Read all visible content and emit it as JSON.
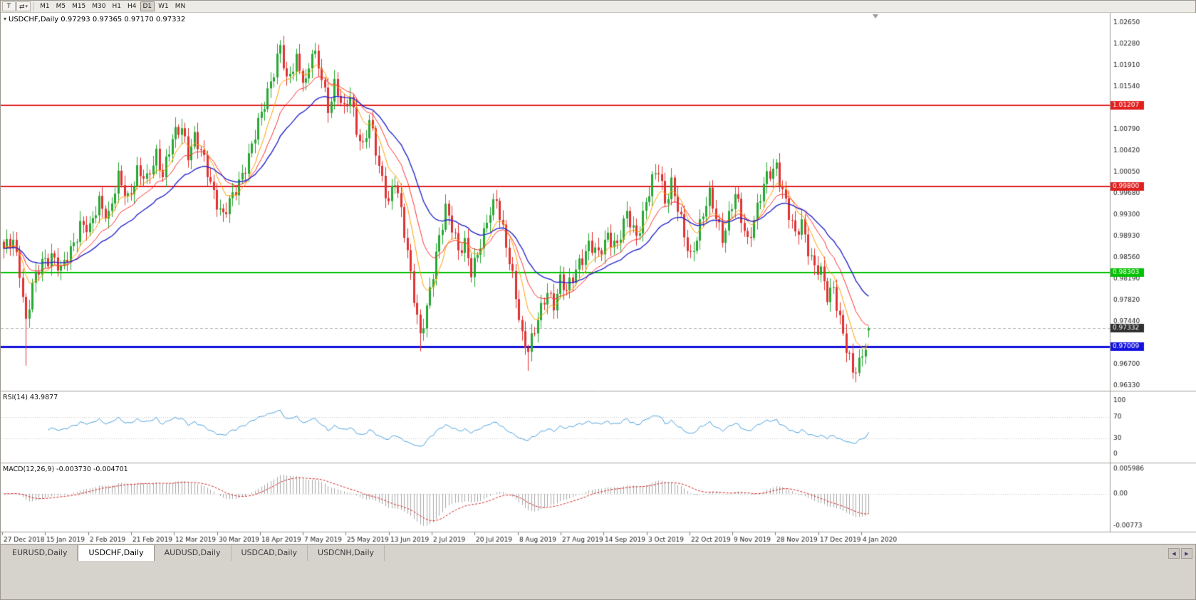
{
  "toolbar": {
    "tool_button": "T",
    "timeframes": [
      "M1",
      "M5",
      "M15",
      "M30",
      "H1",
      "H4",
      "D1",
      "W1",
      "MN"
    ],
    "active_timeframe": "D1"
  },
  "icons": {
    "expander": "▾",
    "caret": "▾",
    "arrows": "⇄",
    "scroll_left": "◀",
    "scroll_right": "▶"
  },
  "chart_header": {
    "title": "USDCHF,Daily 0.97293 0.97365 0.97170 0.97332"
  },
  "indicators": {
    "rsi": {
      "label": "RSI(14) 43.9877"
    },
    "macd": {
      "label": "MACD(12,26,9) -0.003730 -0.004701"
    }
  },
  "tabbar": {
    "tabs": [
      "EURUSD,Daily",
      "USDCHF,Daily",
      "AUDUSD,Daily",
      "USDCAD,Daily",
      "USDCNH,Daily"
    ],
    "active_tab": "USDCHF,Daily"
  },
  "chart_data": {
    "type": "candlestick",
    "symbol": "USDCHF",
    "timeframe": "Daily",
    "ohlc": {
      "open": 0.97293,
      "high": 0.97365,
      "low": 0.9717,
      "close": 0.97332
    },
    "current_price": 0.97332,
    "current_price_label": "0.97332",
    "price_axis": {
      "max": 1.0265,
      "min": 0.9633,
      "tick_step": 0.0037
    },
    "y_ticks": [
      "1.02650",
      "1.02280",
      "1.01910",
      "1.01540",
      "1.00790",
      "1.00420",
      "1.00050",
      "0.99680",
      "0.99300",
      "0.98930",
      "0.98560",
      "0.98190",
      "0.97820",
      "0.97440",
      "0.96700",
      "0.96330"
    ],
    "x_ticks": [
      "27 Dec 2018",
      "15 Jan 2019",
      "2 Feb 2019",
      "21 Feb 2019",
      "12 Mar 2019",
      "30 Mar 2019",
      "18 Apr 2019",
      "7 May 2019",
      "25 May 2019",
      "13 Jun 2019",
      "2 Jul 2019",
      "20 Jul 2019",
      "8 Aug 2019",
      "27 Aug 2019",
      "14 Sep 2019",
      "3 Oct 2019",
      "22 Oct 2019",
      "9 Nov 2019",
      "28 Nov 2019",
      "17 Dec 2019",
      "4 Jan 2020"
    ],
    "price_lines": [
      {
        "price": 1.01207,
        "label": "1.01207",
        "color": "#e02020",
        "width": 2
      },
      {
        "price": 0.998,
        "label": "0.99800",
        "color": "#e02020",
        "width": 2
      },
      {
        "price": 0.98303,
        "label": "0.98303",
        "color": "#00c000",
        "width": 2
      },
      {
        "price": 0.97009,
        "label": "0.97009",
        "color": "#1414dd",
        "width": 3
      }
    ],
    "colors": {
      "bull": "#26a832",
      "bear": "#e03232",
      "current_badge": "#2f2f2f",
      "current_line": "#b4b4b4"
    },
    "moving_averages": [
      {
        "period": 8,
        "color": "#ffa000",
        "width": 1
      },
      {
        "period": 16,
        "color": "#ff3030",
        "width": 1
      },
      {
        "period": 30,
        "color": "#2828cc",
        "width": 1.4
      }
    ],
    "candle_count": 273,
    "price_anchors": [
      [
        0,
        0.9865
      ],
      [
        3,
        0.9888
      ],
      [
        5,
        0.9838
      ],
      [
        7,
        0.9742
      ],
      [
        9,
        0.9802
      ],
      [
        12,
        0.9852
      ],
      [
        15,
        0.9862
      ],
      [
        18,
        0.9828
      ],
      [
        21,
        0.9872
      ],
      [
        24,
        0.9915
      ],
      [
        27,
        0.99
      ],
      [
        30,
        0.9958
      ],
      [
        33,
        0.993
      ],
      [
        36,
        0.999
      ],
      [
        39,
        0.9962
      ],
      [
        42,
        1.0008
      ],
      [
        45,
        0.9985
      ],
      [
        48,
        1.004
      ],
      [
        50,
        1.0005
      ],
      [
        53,
        1.0058
      ],
      [
        56,
        1.0084
      ],
      [
        58,
        1.0042
      ],
      [
        60,
        1.0066
      ],
      [
        63,
        1.002
      ],
      [
        66,
        0.9972
      ],
      [
        69,
        0.9928
      ],
      [
        72,
        0.9958
      ],
      [
        75,
        1.0005
      ],
      [
        78,
        1.005
      ],
      [
        81,
        1.0102
      ],
      [
        84,
        1.0168
      ],
      [
        87,
        1.0224
      ],
      [
        89,
        1.0155
      ],
      [
        92,
        1.0205
      ],
      [
        95,
        1.016
      ],
      [
        97,
        1.0212
      ],
      [
        100,
        1.0172
      ],
      [
        102,
        1.012
      ],
      [
        104,
        1.0158
      ],
      [
        107,
        1.0106
      ],
      [
        109,
        1.014
      ],
      [
        111,
        1.0085
      ],
      [
        113,
        1.0048
      ],
      [
        115,
        1.009
      ],
      [
        117,
        1.004
      ],
      [
        119,
        0.9995
      ],
      [
        121,
        0.9958
      ],
      [
        123,
        0.9988
      ],
      [
        125,
        0.993
      ],
      [
        127,
        0.9868
      ],
      [
        129,
        0.9795
      ],
      [
        131,
        0.9718
      ],
      [
        133,
        0.976
      ],
      [
        135,
        0.9828
      ],
      [
        137,
        0.9898
      ],
      [
        139,
        0.9946
      ],
      [
        141,
        0.9905
      ],
      [
        143,
        0.9862
      ],
      [
        145,
        0.9885
      ],
      [
        147,
        0.9838
      ],
      [
        149,
        0.986
      ],
      [
        151,
        0.989
      ],
      [
        153,
        0.9938
      ],
      [
        155,
        0.9965
      ],
      [
        157,
        0.9905
      ],
      [
        159,
        0.9845
      ],
      [
        161,
        0.9785
      ],
      [
        163,
        0.9722
      ],
      [
        165,
        0.9702
      ],
      [
        167,
        0.9728
      ],
      [
        169,
        0.976
      ],
      [
        171,
        0.9798
      ],
      [
        173,
        0.978
      ],
      [
        175,
        0.9818
      ],
      [
        177,
        0.9792
      ],
      [
        179,
        0.982
      ],
      [
        181,
        0.9852
      ],
      [
        184,
        0.9878
      ],
      [
        187,
        0.9856
      ],
      [
        190,
        0.99
      ],
      [
        193,
        0.9876
      ],
      [
        196,
        0.9928
      ],
      [
        199,
        0.9898
      ],
      [
        202,
        0.995
      ],
      [
        204,
        0.9985
      ],
      [
        206,
        1.001
      ],
      [
        208,
        0.9958
      ],
      [
        210,
        0.9988
      ],
      [
        212,
        0.9938
      ],
      [
        214,
        0.989
      ],
      [
        216,
        0.986
      ],
      [
        218,
        0.9898
      ],
      [
        220,
        0.993
      ],
      [
        222,
        0.996
      ],
      [
        224,
        0.9928
      ],
      [
        226,
        0.9896
      ],
      [
        228,
        0.9928
      ],
      [
        230,
        0.9962
      ],
      [
        232,
        0.9922
      ],
      [
        234,
        0.9888
      ],
      [
        236,
        0.9926
      ],
      [
        238,
        0.996
      ],
      [
        240,
        0.9992
      ],
      [
        243,
        1.002
      ],
      [
        245,
        0.9976
      ],
      [
        247,
        0.9928
      ],
      [
        249,
        0.989
      ],
      [
        251,
        0.992
      ],
      [
        253,
        0.9876
      ],
      [
        255,
        0.9838
      ],
      [
        257,
        0.9826
      ],
      [
        259,
        0.9788
      ],
      [
        261,
        0.981
      ],
      [
        263,
        0.975
      ],
      [
        265,
        0.9694
      ],
      [
        267,
        0.9652
      ],
      [
        269,
        0.9676
      ],
      [
        271,
        0.971
      ],
      [
        272,
        0.97332
      ]
    ],
    "spike_lows": [
      {
        "i": 7,
        "low": 0.9668
      },
      {
        "i": 131,
        "low": 0.9693
      },
      {
        "i": 165,
        "low": 0.9659
      },
      {
        "i": 267,
        "low": 0.9645
      }
    ],
    "spike_highs": [
      {
        "i": 87,
        "high": 1.0235
      },
      {
        "i": 97,
        "high": 1.0218
      },
      {
        "i": 206,
        "high": 1.0018
      },
      {
        "i": 243,
        "high": 1.0028
      }
    ],
    "rsi": {
      "period": 14,
      "value": 43.9877,
      "levels": [
        100,
        70,
        30,
        0
      ],
      "color": "#4aa1e0"
    },
    "macd": {
      "fast": 12,
      "slow": 26,
      "signal": 9,
      "value": -0.00373,
      "signal_value": -0.004701,
      "scale_labels": [
        "0.005986",
        "0.00",
        "-0.00773"
      ],
      "histogram_color": "#a8a8a8",
      "signal_color": "#d42020"
    }
  }
}
